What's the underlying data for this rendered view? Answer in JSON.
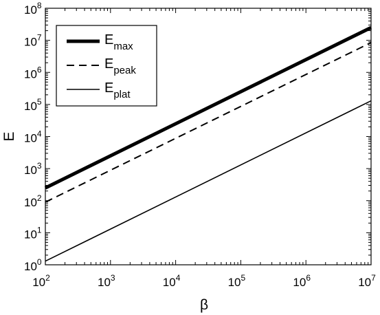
{
  "chart_data": {
    "type": "line",
    "xlabel": "β",
    "ylabel": "E",
    "x_scale": "log",
    "y_scale": "log",
    "xlim": [
      100,
      10000000
    ],
    "ylim": [
      1,
      100000000
    ],
    "x_ticks": [
      {
        "base": "10",
        "exp": "2",
        "value": 100
      },
      {
        "base": "10",
        "exp": "3",
        "value": 1000
      },
      {
        "base": "10",
        "exp": "4",
        "value": 10000
      },
      {
        "base": "10",
        "exp": "5",
        "value": 100000
      },
      {
        "base": "10",
        "exp": "6",
        "value": 1000000
      },
      {
        "base": "10",
        "exp": "7",
        "value": 10000000
      }
    ],
    "y_ticks": [
      {
        "base": "10",
        "exp": "0",
        "value": 1
      },
      {
        "base": "10",
        "exp": "1",
        "value": 10
      },
      {
        "base": "10",
        "exp": "2",
        "value": 100
      },
      {
        "base": "10",
        "exp": "3",
        "value": 1000
      },
      {
        "base": "10",
        "exp": "4",
        "value": 10000
      },
      {
        "base": "10",
        "exp": "5",
        "value": 100000
      },
      {
        "base": "10",
        "exp": "6",
        "value": 1000000
      },
      {
        "base": "10",
        "exp": "7",
        "value": 10000000
      },
      {
        "base": "10",
        "exp": "8",
        "value": 100000000
      }
    ],
    "grid": false,
    "legend_position": "top-left",
    "series": [
      {
        "name": "E",
        "subscript": "max",
        "style": "thick-solid",
        "color": "#000000",
        "x": [
          100,
          10000000
        ],
        "y": [
          250,
          25000000
        ]
      },
      {
        "name": "E",
        "subscript": "peak",
        "style": "dashed",
        "color": "#000000",
        "x": [
          100,
          10000000
        ],
        "y": [
          90,
          8500000
        ]
      },
      {
        "name": "E",
        "subscript": "plat",
        "style": "thin-solid",
        "color": "#000000",
        "x": [
          100,
          10000000
        ],
        "y": [
          1.3,
          130000
        ]
      }
    ]
  }
}
